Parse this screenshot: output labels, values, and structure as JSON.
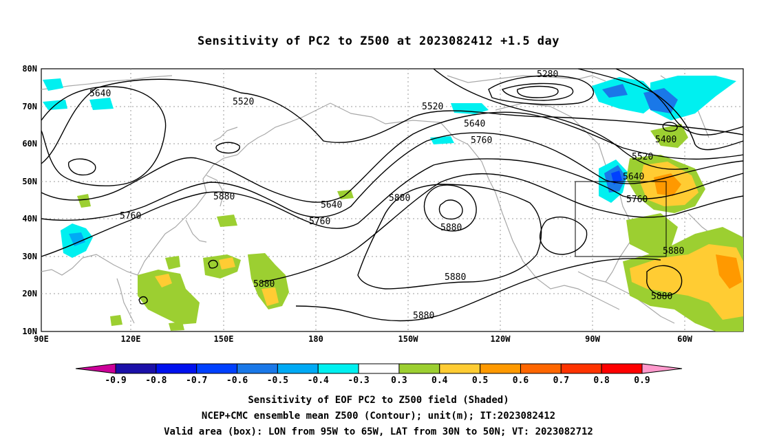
{
  "title": "Sensitivity of PC2 to Z500 at 2023082412 +1.5 day",
  "map": {
    "lat_labels": [
      "80N",
      "70N",
      "60N",
      "50N",
      "40N",
      "30N",
      "20N",
      "10N"
    ],
    "lon_labels": [
      "90E",
      "120E",
      "150E",
      "180",
      "150W",
      "120W",
      "90W",
      "60W"
    ],
    "contour_labels": [
      "5640",
      "5520",
      "5280",
      "5520",
      "5640",
      "5760",
      "5400",
      "5520",
      "5640",
      "5760",
      "5880",
      "5880",
      "5640",
      "5760",
      "5760",
      "5880",
      "5880",
      "5880",
      "5880",
      "5880"
    ],
    "valid_box": {
      "lon_west": "95W",
      "lon_east": "65W",
      "lat_south": "30N",
      "lat_north": "50N"
    }
  },
  "colorbar": {
    "labels": [
      "-0.9",
      "-0.8",
      "-0.7",
      "-0.6",
      "-0.5",
      "-0.4",
      "-0.3",
      "0.3",
      "0.4",
      "0.5",
      "0.6",
      "0.7",
      "0.8",
      "0.9"
    ],
    "colors": [
      "#1b10a8",
      "#0011ee",
      "#0040ff",
      "#1a78e8",
      "#00aaf5",
      "#00f0f0",
      "#ffffff",
      "#9ccf31",
      "#ffcc33",
      "#ff9900",
      "#ff6600",
      "#ff3300",
      "#ff0000"
    ],
    "low_end_color": "#cc0099",
    "high_end_color": "#ff99cc"
  },
  "footer": {
    "line1": "Sensitivity of EOF PC2 to Z500 field (Shaded)",
    "line2": "NCEP+CMC ensemble mean Z500 (Contour); unit(m); IT:2023082412",
    "line3": "Valid area (box): LON from 95W to 65W, LAT from 30N to 50N; VT: 2023082712"
  }
}
